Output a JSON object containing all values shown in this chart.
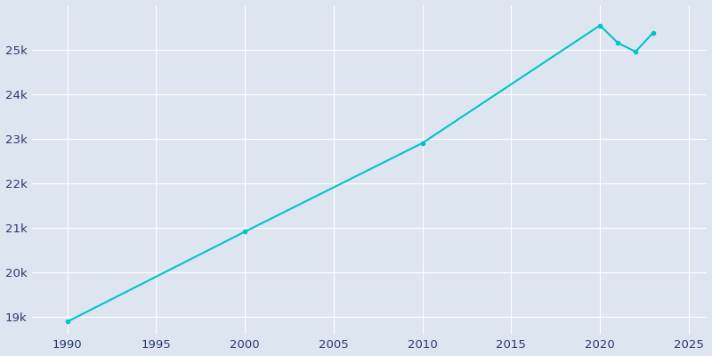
{
  "years": [
    1990,
    2000,
    2010,
    2020,
    2021,
    2022,
    2023
  ],
  "population": [
    18890,
    20910,
    22900,
    25540,
    25150,
    24950,
    25380
  ],
  "line_color": "#00C5C5",
  "marker_color": "#00C5C5",
  "bg_color": "#DDE5F0",
  "plot_bg_color": "#DDE5F0",
  "grid_color": "#ffffff",
  "tick_label_color": "#2B3A6B",
  "xlim": [
    1988,
    2026
  ],
  "ylim": [
    18600,
    26000
  ],
  "xticks": [
    1990,
    1995,
    2000,
    2005,
    2010,
    2015,
    2020,
    2025
  ],
  "ytick_values": [
    19000,
    20000,
    21000,
    22000,
    23000,
    24000,
    25000
  ],
  "ytick_labels": [
    "19k",
    "20k",
    "21k",
    "22k",
    "23k",
    "24k",
    "25k"
  ],
  "figsize": [
    8.0,
    4.0
  ],
  "dpi": 100
}
